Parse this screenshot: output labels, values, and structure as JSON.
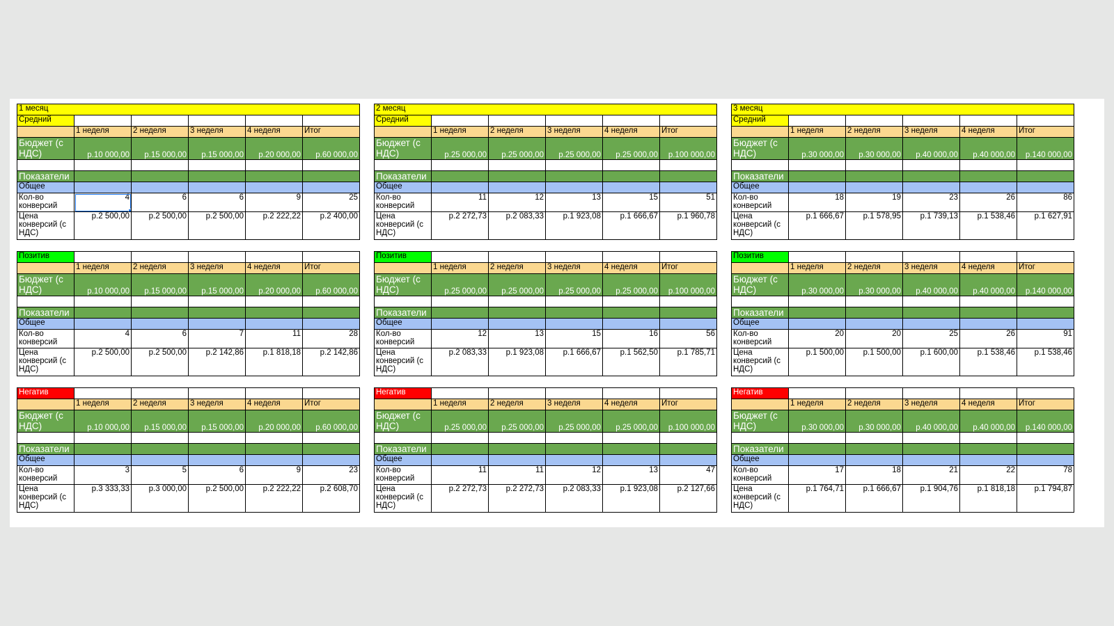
{
  "weeks": [
    "1 неделя",
    "2 неделя",
    "3 неделя",
    "4 неделя",
    "Итог"
  ],
  "labels": {
    "budget": "Бюджет (с НДС)",
    "indicators": "Показатели",
    "general": "Общее",
    "conversions": "Кол-во конверсий",
    "price": "Цена конверсий (с НДС)"
  },
  "months": [
    {
      "title": "1 месяц",
      "segments": [
        {
          "name": "Средний",
          "budget": [
            "р.10 000,00",
            "р.15 000,00",
            "р.15 000,00",
            "р.20 000,00",
            "р.60 000,00"
          ],
          "conversions": [
            "4",
            "6",
            "6",
            "9",
            "25"
          ],
          "price": [
            "р.2 500,00",
            "р.2 500,00",
            "р.2 500,00",
            "р.2 222,22",
            "р.2 400,00"
          ]
        },
        {
          "name": "Позитив",
          "budget": [
            "р.10 000,00",
            "р.15 000,00",
            "р.15 000,00",
            "р.20 000,00",
            "р.60 000,00"
          ],
          "conversions": [
            "4",
            "6",
            "7",
            "11",
            "28"
          ],
          "price": [
            "р.2 500,00",
            "р.2 500,00",
            "р.2 142,86",
            "р.1 818,18",
            "р.2 142,86"
          ]
        },
        {
          "name": "Негатив",
          "budget": [
            "р.10 000,00",
            "р.15 000,00",
            "р.15 000,00",
            "р.20 000,00",
            "р.60 000,00"
          ],
          "conversions": [
            "3",
            "5",
            "6",
            "9",
            "23"
          ],
          "price": [
            "р.3 333,33",
            "р.3 000,00",
            "р.2 500,00",
            "р.2 222,22",
            "р.2 608,70"
          ]
        }
      ]
    },
    {
      "title": "2 месяц",
      "segments": [
        {
          "name": "Средний",
          "budget": [
            "р.25 000,00",
            "р.25 000,00",
            "р.25 000,00",
            "р.25 000,00",
            "р.100 000,00"
          ],
          "conversions": [
            "11",
            "12",
            "13",
            "15",
            "51"
          ],
          "price": [
            "р.2 272,73",
            "р.2 083,33",
            "р.1 923,08",
            "р.1 666,67",
            "р.1 960,78"
          ]
        },
        {
          "name": "Позитив",
          "budget": [
            "р.25 000,00",
            "р.25 000,00",
            "р.25 000,00",
            "р.25 000,00",
            "р.100 000,00"
          ],
          "conversions": [
            "12",
            "13",
            "15",
            "16",
            "56"
          ],
          "price": [
            "р.2 083,33",
            "р.1 923,08",
            "р.1 666,67",
            "р.1 562,50",
            "р.1 785,71"
          ]
        },
        {
          "name": "Негатив",
          "budget": [
            "р.25 000,00",
            "р.25 000,00",
            "р.25 000,00",
            "р.25 000,00",
            "р.100 000,00"
          ],
          "conversions": [
            "11",
            "11",
            "12",
            "13",
            "47"
          ],
          "price": [
            "р.2 272,73",
            "р.2 272,73",
            "р.2 083,33",
            "р.1 923,08",
            "р.2 127,66"
          ]
        }
      ]
    },
    {
      "title": "3 месяц",
      "segments": [
        {
          "name": "Средний",
          "budget": [
            "р.30 000,00",
            "р.30 000,00",
            "р.40 000,00",
            "р.40 000,00",
            "р.140 000,00"
          ],
          "conversions": [
            "18",
            "19",
            "23",
            "26",
            "86"
          ],
          "price": [
            "р.1 666,67",
            "р.1 578,95",
            "р.1 739,13",
            "р.1 538,46",
            "р.1 627,91"
          ]
        },
        {
          "name": "Позитив",
          "budget": [
            "р.30 000,00",
            "р.30 000,00",
            "р.40 000,00",
            "р.40 000,00",
            "р.140 000,00"
          ],
          "conversions": [
            "20",
            "20",
            "25",
            "26",
            "91"
          ],
          "price": [
            "р.1 500,00",
            "р.1 500,00",
            "р.1 600,00",
            "р.1 538,46",
            "р.1 538,46"
          ]
        },
        {
          "name": "Негатив",
          "budget": [
            "р.30 000,00",
            "р.30 000,00",
            "р.40 000,00",
            "р.40 000,00",
            "р.140 000,00"
          ],
          "conversions": [
            "17",
            "18",
            "21",
            "22",
            "78"
          ],
          "price": [
            "р.1 764,71",
            "р.1 666,67",
            "р.1 904,76",
            "р.1 818,18",
            "р.1 794,87"
          ]
        }
      ]
    }
  ],
  "colors": {
    "month_title": "#ffff00",
    "week_header": "#fbd890",
    "budget_row": "#6aa84f",
    "general_row": "#a4c2f4",
    "segment_positive": "#00ff00",
    "segment_negative": "#ff0000",
    "segment_average": "#ffff00"
  }
}
